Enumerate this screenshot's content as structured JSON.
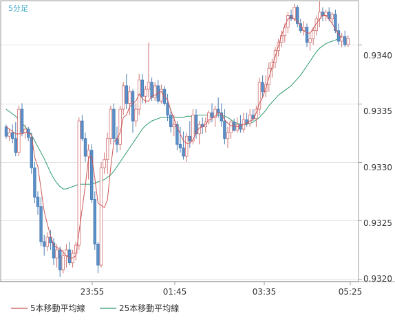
{
  "timeframe_label": "5分足",
  "colors": {
    "bull": "#ffffff",
    "bull_border": "#d07070",
    "bear": "#5b8fc7",
    "bear_border": "#4a7db5",
    "ma5": "#cc5555",
    "ma25": "#2a9a6a",
    "grid": "#e0e0e0",
    "background": "#ffffff",
    "frame": "#999999"
  },
  "chart_data": {
    "type": "candlestick",
    "title": "",
    "ylim": [
      0.93198,
      0.93437
    ],
    "y_ticks": [
      "0.9340",
      "0.9335",
      "0.9330",
      "0.9325",
      "0.9320"
    ],
    "x_ticks": [
      "23:55",
      "01:45",
      "03:35",
      "05:25"
    ],
    "legend": [
      "5本移動平均線",
      "25本移動平均線"
    ],
    "candles": [
      [
        0.9333,
        0.93332,
        0.9332,
        0.93322
      ],
      [
        0.93322,
        0.93328,
        0.93318,
        0.93325
      ],
      [
        0.93325,
        0.93332,
        0.93316,
        0.9332
      ],
      [
        0.9332,
        0.93334,
        0.93305,
        0.93308
      ],
      [
        0.93308,
        0.93348,
        0.93305,
        0.93345
      ],
      [
        0.93345,
        0.9335,
        0.93322,
        0.93325
      ],
      [
        0.93325,
        0.93332,
        0.9332,
        0.93328
      ],
      [
        0.93328,
        0.9333,
        0.93318,
        0.93321
      ],
      [
        0.93321,
        0.93325,
        0.9329,
        0.93295
      ],
      [
        0.93295,
        0.933,
        0.93265,
        0.9327
      ],
      [
        0.9327,
        0.93275,
        0.93255,
        0.93262
      ],
      [
        0.93262,
        0.9327,
        0.93228,
        0.93232
      ],
      [
        0.93232,
        0.93238,
        0.9322,
        0.93228
      ],
      [
        0.93228,
        0.9324,
        0.93224,
        0.93236
      ],
      [
        0.93236,
        0.93242,
        0.93225,
        0.93231
      ],
      [
        0.93231,
        0.93235,
        0.93212,
        0.93218
      ],
      [
        0.93218,
        0.9323,
        0.9321,
        0.93225
      ],
      [
        0.93225,
        0.93228,
        0.93202,
        0.93208
      ],
      [
        0.93208,
        0.93225,
        0.93205,
        0.9322
      ],
      [
        0.9322,
        0.9323,
        0.9321,
        0.93225
      ],
      [
        0.93225,
        0.93232,
        0.93212,
        0.93214
      ],
      [
        0.93214,
        0.93225,
        0.9321,
        0.93222
      ],
      [
        0.93222,
        0.93232,
        0.93216,
        0.93229
      ],
      [
        0.93229,
        0.93338,
        0.93225,
        0.93335
      ],
      [
        0.93335,
        0.9334,
        0.93318,
        0.9332
      ],
      [
        0.9332,
        0.93325,
        0.933,
        0.93305
      ],
      [
        0.93305,
        0.93315,
        0.93285,
        0.9331
      ],
      [
        0.9331,
        0.93315,
        0.93265,
        0.93268
      ],
      [
        0.93268,
        0.93275,
        0.93225,
        0.9323
      ],
      [
        0.9323,
        0.93232,
        0.93205,
        0.93212
      ],
      [
        0.93212,
        0.933,
        0.9321,
        0.93295
      ],
      [
        0.93295,
        0.93308,
        0.9329,
        0.93302
      ],
      [
        0.93302,
        0.93325,
        0.9329,
        0.9332
      ],
      [
        0.9332,
        0.93348,
        0.93315,
        0.93345
      ],
      [
        0.93345,
        0.9335,
        0.93315,
        0.9332
      ],
      [
        0.9332,
        0.9333,
        0.93308,
        0.93315
      ],
      [
        0.93315,
        0.93348,
        0.9331,
        0.93345
      ],
      [
        0.93345,
        0.93368,
        0.9334,
        0.93365
      ],
      [
        0.93365,
        0.93375,
        0.93345,
        0.9335
      ],
      [
        0.9335,
        0.93365,
        0.9334,
        0.9336
      ],
      [
        0.9336,
        0.93362,
        0.93325,
        0.93335
      ],
      [
        0.93335,
        0.9335,
        0.9333,
        0.93345
      ],
      [
        0.93345,
        0.93375,
        0.9334,
        0.9337
      ],
      [
        0.9337,
        0.93375,
        0.9335,
        0.93356
      ],
      [
        0.93356,
        0.93365,
        0.9335,
        0.93362
      ],
      [
        0.93362,
        0.93402,
        0.93355,
        0.93368
      ],
      [
        0.93368,
        0.93372,
        0.93352,
        0.93355
      ],
      [
        0.93355,
        0.93368,
        0.93352,
        0.93365
      ],
      [
        0.93365,
        0.9337,
        0.9335,
        0.93352
      ],
      [
        0.93352,
        0.93366,
        0.9335,
        0.93362
      ],
      [
        0.93362,
        0.93365,
        0.93348,
        0.9335
      ],
      [
        0.9335,
        0.93358,
        0.93335,
        0.9334
      ],
      [
        0.9334,
        0.93345,
        0.93325,
        0.9333
      ],
      [
        0.9333,
        0.9334,
        0.93322,
        0.93332
      ],
      [
        0.93332,
        0.93335,
        0.9331,
        0.93315
      ],
      [
        0.93315,
        0.9333,
        0.93308,
        0.93312
      ],
      [
        0.93312,
        0.93326,
        0.93302,
        0.93305
      ],
      [
        0.93305,
        0.93325,
        0.933,
        0.93322
      ],
      [
        0.93322,
        0.93335,
        0.93312,
        0.93318
      ],
      [
        0.93318,
        0.93345,
        0.93315,
        0.9334
      ],
      [
        0.9334,
        0.93345,
        0.9332,
        0.93324
      ],
      [
        0.93324,
        0.93335,
        0.93315,
        0.93332
      ],
      [
        0.93332,
        0.93338,
        0.93324,
        0.9333
      ],
      [
        0.9333,
        0.93338,
        0.93325,
        0.93334
      ],
      [
        0.93334,
        0.93344,
        0.93332,
        0.93342
      ],
      [
        0.93342,
        0.9335,
        0.93334,
        0.93338
      ],
      [
        0.93338,
        0.93348,
        0.9333,
        0.93345
      ],
      [
        0.93345,
        0.93355,
        0.93338,
        0.93342
      ],
      [
        0.93342,
        0.9335,
        0.9333,
        0.93335
      ],
      [
        0.93335,
        0.93345,
        0.93315,
        0.9332
      ],
      [
        0.9332,
        0.9333,
        0.93312,
        0.93325
      ],
      [
        0.93325,
        0.93336,
        0.9332,
        0.93334
      ],
      [
        0.93334,
        0.93337,
        0.93326,
        0.93327
      ],
      [
        0.93327,
        0.93338,
        0.93325,
        0.93332
      ],
      [
        0.93332,
        0.9334,
        0.93325,
        0.93328
      ],
      [
        0.93328,
        0.93342,
        0.93325,
        0.93336
      ],
      [
        0.93336,
        0.93342,
        0.9333,
        0.93333
      ],
      [
        0.93333,
        0.93345,
        0.9333,
        0.9334
      ],
      [
        0.9334,
        0.93345,
        0.93335,
        0.93337
      ],
      [
        0.93337,
        0.93348,
        0.9333,
        0.93345
      ],
      [
        0.93345,
        0.93372,
        0.9334,
        0.93368
      ],
      [
        0.93368,
        0.93374,
        0.93355,
        0.9336
      ],
      [
        0.9336,
        0.93374,
        0.93355,
        0.93366
      ],
      [
        0.93366,
        0.93385,
        0.9336,
        0.9338
      ],
      [
        0.9338,
        0.93388,
        0.93372,
        0.93385
      ],
      [
        0.93385,
        0.93398,
        0.9338,
        0.93395
      ],
      [
        0.93395,
        0.93405,
        0.9339,
        0.93402
      ],
      [
        0.93402,
        0.93412,
        0.93398,
        0.93408
      ],
      [
        0.93408,
        0.93418,
        0.93402,
        0.93415
      ],
      [
        0.93415,
        0.93428,
        0.9341,
        0.93425
      ],
      [
        0.93425,
        0.9343,
        0.9342,
        0.93422
      ],
      [
        0.93422,
        0.93435,
        0.9342,
        0.93432
      ],
      [
        0.93432,
        0.93434,
        0.93415,
        0.93418
      ],
      [
        0.93418,
        0.93422,
        0.9341,
        0.93412
      ],
      [
        0.93412,
        0.9342,
        0.93408,
        0.93415
      ],
      [
        0.93415,
        0.93418,
        0.93398,
        0.93402
      ],
      [
        0.93402,
        0.9341,
        0.93395,
        0.93405
      ],
      [
        0.93405,
        0.93415,
        0.934,
        0.93412
      ],
      [
        0.93412,
        0.93425,
        0.93408,
        0.93422
      ],
      [
        0.93422,
        0.93437,
        0.93415,
        0.93428
      ],
      [
        0.93428,
        0.93432,
        0.9342,
        0.93425
      ],
      [
        0.93425,
        0.9343,
        0.9342,
        0.93428
      ],
      [
        0.93428,
        0.93432,
        0.9342,
        0.93422
      ],
      [
        0.93422,
        0.93428,
        0.93418,
        0.93426
      ],
      [
        0.93426,
        0.9343,
        0.9341,
        0.93412
      ],
      [
        0.93412,
        0.93418,
        0.934,
        0.93403
      ],
      [
        0.93403,
        0.9341,
        0.93398,
        0.93407
      ],
      [
        0.93407,
        0.93412,
        0.93398,
        0.934
      ],
      [
        0.934,
        0.93408,
        0.93398,
        0.93405
      ]
    ],
    "ma5": [
      0.9333,
      0.93328,
      0.93326,
      0.93324,
      0.93324,
      0.93324,
      0.93325,
      0.93325,
      0.93323,
      0.93304,
      0.93296,
      0.93277,
      0.93258,
      0.93247,
      0.93237,
      0.93229,
      0.93227,
      0.93226,
      0.93223,
      0.9322,
      0.93218,
      0.93218,
      0.9322,
      0.9324,
      0.9326,
      0.9328,
      0.93303,
      0.93305,
      0.93286,
      0.93265,
      0.93263,
      0.93261,
      0.93268,
      0.93295,
      0.93317,
      0.9332,
      0.93325,
      0.93338,
      0.9334,
      0.93347,
      0.9335,
      0.93352,
      0.93358,
      0.93354,
      0.93352,
      0.93352,
      0.93356,
      0.93357,
      0.93359,
      0.9336,
      0.93356,
      0.93353,
      0.93344,
      0.93337,
      0.9333,
      0.93324,
      0.93318,
      0.93316,
      0.93316,
      0.93319,
      0.93325,
      0.93329,
      0.9333,
      0.93332,
      0.93336,
      0.93337,
      0.93339,
      0.93342,
      0.93341,
      0.93336,
      0.93333,
      0.93331,
      0.93331,
      0.9333,
      0.93331,
      0.93332,
      0.93333,
      0.93335,
      0.93336,
      0.93342,
      0.9335,
      0.93355,
      0.93363,
      0.93372,
      0.93381,
      0.9339,
      0.93399,
      0.93408,
      0.93416,
      0.93422,
      0.93424,
      0.93422,
      0.9342,
      0.93416,
      0.93412,
      0.9341,
      0.9341,
      0.93414,
      0.93418,
      0.93422,
      0.93425,
      0.93425,
      0.93422,
      0.93418,
      0.93413,
      0.93409,
      0.93406
    ],
    "ma25": [
      0.93345,
      0.93343,
      0.93341,
      0.93339,
      0.93336,
      0.93333,
      0.9333,
      0.93327,
      0.93323,
      0.93318,
      0.93313,
      0.93308,
      0.93303,
      0.93297,
      0.93291,
      0.93286,
      0.93282,
      0.93279,
      0.93277,
      0.93277,
      0.93278,
      0.93279,
      0.9328,
      0.93281,
      0.93281,
      0.93281,
      0.93281,
      0.93281,
      0.93282,
      0.93283,
      0.93284,
      0.93285,
      0.93287,
      0.93289,
      0.93292,
      0.93296,
      0.933,
      0.93304,
      0.93308,
      0.93312,
      0.93316,
      0.9332,
      0.93324,
      0.93328,
      0.93331,
      0.93333,
      0.93335,
      0.93336,
      0.93337,
      0.93338,
      0.93338,
      0.93338,
      0.93338,
      0.93338,
      0.93338,
      0.93338,
      0.93338,
      0.93339,
      0.93339,
      0.93339,
      0.9334,
      0.9334,
      0.9334,
      0.9334,
      0.9334,
      0.9334,
      0.9334,
      0.9334,
      0.9334,
      0.93339,
      0.93338,
      0.93336,
      0.93334,
      0.93333,
      0.93332,
      0.93332,
      0.93332,
      0.93333,
      0.93334,
      0.93336,
      0.93338,
      0.93341,
      0.93344,
      0.93348,
      0.93351,
      0.93354,
      0.93357,
      0.93359,
      0.93361,
      0.93363,
      0.93365,
      0.93368,
      0.93371,
      0.93374,
      0.93378,
      0.93382,
      0.93386,
      0.9339,
      0.93394,
      0.93397,
      0.93399,
      0.93401,
      0.93402,
      0.93403,
      0.93404,
      0.93405,
      0.93405
    ]
  }
}
